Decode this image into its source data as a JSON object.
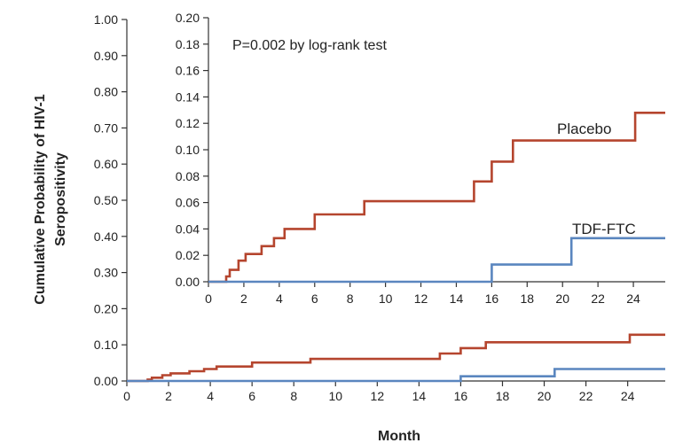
{
  "chart_data": [
    {
      "type": "line",
      "role": "main",
      "xlabel": "Month",
      "ylabel": "Cumulative Probability of HIV-1 Seropositivity",
      "ylabel_lines": [
        "Cumulative Probability of HIV-1",
        "Seropositivity"
      ],
      "xlim": [
        0,
        25.8
      ],
      "ylim": [
        0,
        1.0
      ],
      "xticks": [
        0,
        2,
        4,
        6,
        8,
        10,
        12,
        14,
        16,
        18,
        20,
        22,
        24
      ],
      "yticks": [
        "0.00",
        "0.10",
        "0.20",
        "0.30",
        "0.40",
        "0.50",
        "0.60",
        "0.70",
        "0.80",
        "0.90",
        "1.00"
      ],
      "colors": {
        "placebo": "#b5452e",
        "tdf_ftc": "#5a86bf"
      },
      "series": [
        {
          "key": "placebo",
          "x": [
            0,
            1.0,
            1.2,
            1.7,
            2.1,
            3.0,
            3.7,
            4.3,
            6.0,
            8.8,
            15.0,
            16.0,
            17.2,
            24.1,
            25.8
          ],
          "y": [
            0,
            0.004,
            0.009,
            0.016,
            0.021,
            0.027,
            0.033,
            0.04,
            0.051,
            0.061,
            0.076,
            0.091,
            0.107,
            0.128,
            0.128
          ]
        },
        {
          "key": "tdf_ftc",
          "x": [
            0,
            16.0,
            20.5,
            25.8
          ],
          "y": [
            0,
            0.013,
            0.033,
            0.033
          ]
        }
      ]
    },
    {
      "type": "line",
      "role": "inset",
      "xlim": [
        0,
        25.8
      ],
      "ylim": [
        0,
        0.2
      ],
      "xticks": [
        0,
        2,
        4,
        6,
        8,
        10,
        12,
        14,
        16,
        18,
        20,
        22,
        24
      ],
      "yticks": [
        "0.00",
        "0.02",
        "0.04",
        "0.06",
        "0.08",
        "0.10",
        "0.12",
        "0.14",
        "0.16",
        "0.18",
        "0.20"
      ],
      "annotation": "P=0.002 by log-rank test",
      "series": [
        {
          "name": "Placebo",
          "key": "placebo",
          "x": [
            0,
            1.0,
            1.2,
            1.7,
            2.1,
            3.0,
            3.7,
            4.3,
            6.0,
            8.8,
            15.0,
            16.0,
            17.2,
            24.1,
            25.8
          ],
          "y": [
            0,
            0.004,
            0.009,
            0.016,
            0.021,
            0.027,
            0.033,
            0.04,
            0.051,
            0.061,
            0.076,
            0.091,
            0.107,
            0.128,
            0.128
          ]
        },
        {
          "name": "TDF-FTC",
          "key": "tdf_ftc",
          "x": [
            0,
            16.0,
            20.5,
            25.8
          ],
          "y": [
            0,
            0.013,
            0.033,
            0.033
          ]
        }
      ]
    }
  ]
}
